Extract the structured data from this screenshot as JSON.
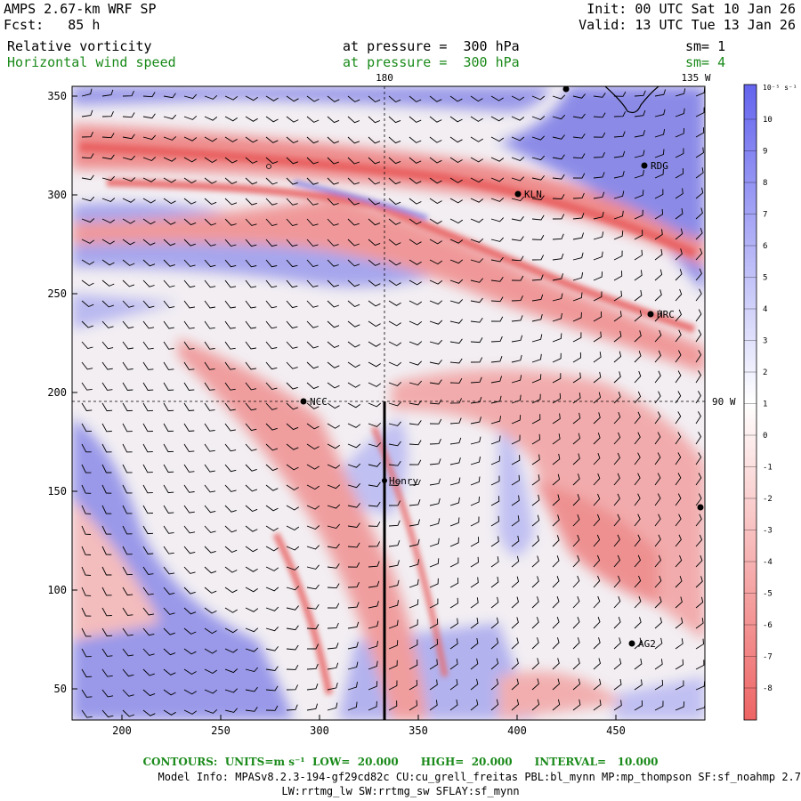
{
  "header": {
    "model": "AMPS 2.67-km WRF SP",
    "fcst": "Fcst:   85 h",
    "init": "Init: 00 UTC Sat 10 Jan 26",
    "valid": "Valid: 13 UTC Tue 13 Jan 26",
    "field1": "Relative vorticity",
    "field1_level": "at pressure =  300 hPa",
    "field1_sm": "sm= 1",
    "field2": "Horizontal wind speed",
    "field2_level": "at pressure =  300 hPa",
    "field2_sm": "sm= 4"
  },
  "map": {
    "x_ticks": [
      "200",
      "250",
      "300",
      "350",
      "400",
      "450"
    ],
    "y_ticks": [
      "50",
      "100",
      "150",
      "200",
      "250",
      "300",
      "350"
    ],
    "lon_labels": {
      "top_180": "180",
      "top_135w": "135 W",
      "right_90w": "90 W"
    },
    "stations": [
      {
        "name": "LVT",
        "label": ""
      },
      {
        "name": "RDG",
        "label": "RDG"
      },
      {
        "name": "KLN",
        "label": "KLN"
      },
      {
        "name": "HRC",
        "label": "HRC"
      },
      {
        "name": "NCC",
        "label": "NCC"
      },
      {
        "name": "Henry",
        "label": "Henry"
      },
      {
        "name": "AG2",
        "label": "AG2"
      },
      {
        "name": "east-edge",
        "label": ""
      }
    ]
  },
  "colorbar": {
    "unit": "10⁻⁵ s⁻¹",
    "labels": [
      "10",
      "9",
      "8",
      "7",
      "6",
      "5",
      "4",
      "3",
      "2",
      "1",
      "0",
      "-1",
      "-2",
      "-3",
      "-4",
      "-5",
      "-6",
      "-7",
      "-8"
    ],
    "positive_color": "#6464ee",
    "negative_color": "#ee6464"
  },
  "footer": {
    "contours": "CONTOURS:  UNITS=m s⁻¹  LOW=  20.000      HIGH=  20.000      INTERVAL=   10.000",
    "model_info": "Model Info: MPASv8.2.3-194-gf29cd82c CU:cu_grell_freitas PBL:bl_mynn MP:mp_thompson SF:sf_noahmp 2.7",
    "model_info2": "LW:rrtmg_lw SW:rrtmg_sw SFLAY:sf_mynn"
  }
}
